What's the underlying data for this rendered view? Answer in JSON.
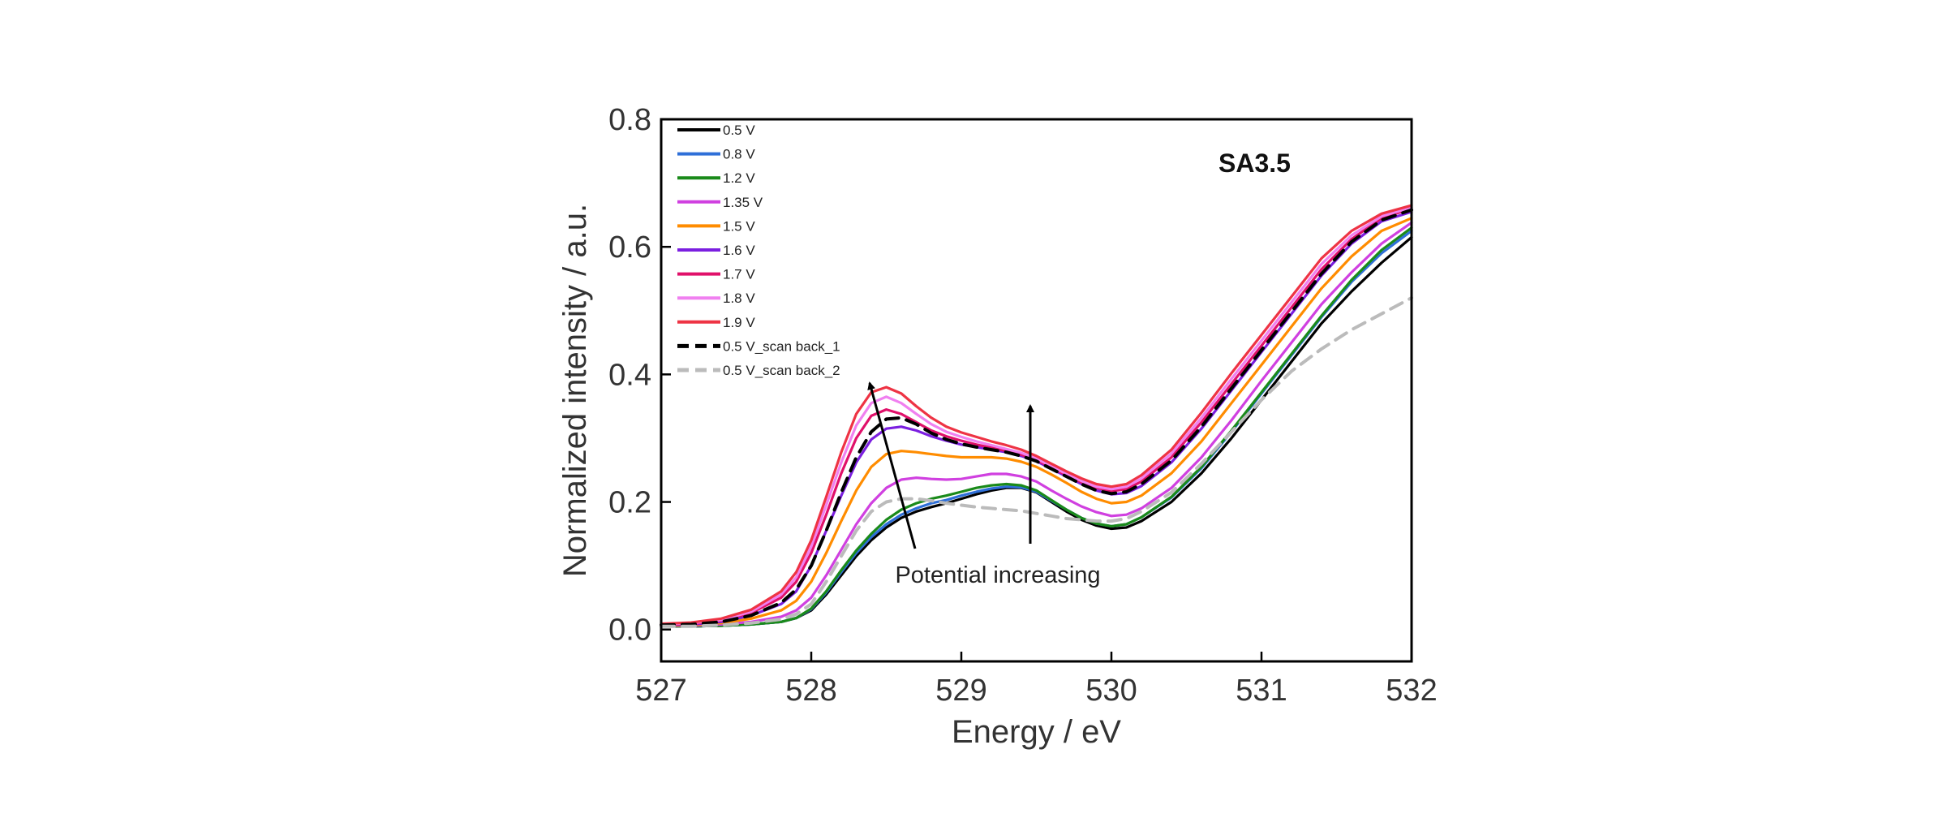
{
  "chart_data": {
    "type": "line",
    "title": "",
    "panel_label": "SA3.5",
    "xlabel": "Energy / eV",
    "ylabel": "Normalized intensity / a.u.",
    "xlim": [
      527,
      532
    ],
    "ylim": [
      -0.05,
      0.8
    ],
    "xticks": [
      527,
      528,
      529,
      530,
      531,
      532
    ],
    "xtick_labels": [
      "527",
      "528",
      "529",
      "530",
      "531",
      "532"
    ],
    "yticks": [
      0.0,
      0.2,
      0.4,
      0.6,
      0.8
    ],
    "ytick_labels": [
      "0.0",
      "0.2",
      "0.4",
      "0.6",
      "0.8"
    ],
    "grid": false,
    "legend_position": "top-left",
    "annotation": "Potential increasing",
    "x": [
      527.0,
      527.2,
      527.4,
      527.6,
      527.8,
      527.9,
      528.0,
      528.1,
      528.2,
      528.3,
      528.4,
      528.5,
      528.6,
      528.7,
      528.8,
      528.9,
      529.0,
      529.1,
      529.2,
      529.3,
      529.4,
      529.5,
      529.6,
      529.7,
      529.8,
      529.9,
      530.0,
      530.1,
      530.2,
      530.4,
      530.6,
      530.8,
      531.0,
      531.2,
      531.4,
      531.6,
      531.8,
      532.0
    ],
    "series": [
      {
        "name": "0.5 V",
        "color": "#000000",
        "dash": "solid",
        "values": [
          0.005,
          0.005,
          0.006,
          0.008,
          0.012,
          0.018,
          0.03,
          0.055,
          0.085,
          0.115,
          0.14,
          0.16,
          0.175,
          0.185,
          0.192,
          0.198,
          0.205,
          0.212,
          0.218,
          0.222,
          0.222,
          0.215,
          0.2,
          0.185,
          0.172,
          0.163,
          0.158,
          0.16,
          0.17,
          0.2,
          0.245,
          0.3,
          0.36,
          0.42,
          0.48,
          0.53,
          0.575,
          0.615
        ]
      },
      {
        "name": "0.8 V",
        "color": "#2e6fd8",
        "dash": "solid",
        "values": [
          0.005,
          0.005,
          0.006,
          0.008,
          0.012,
          0.018,
          0.032,
          0.058,
          0.09,
          0.12,
          0.145,
          0.165,
          0.18,
          0.19,
          0.198,
          0.203,
          0.21,
          0.216,
          0.221,
          0.224,
          0.223,
          0.216,
          0.202,
          0.188,
          0.175,
          0.166,
          0.162,
          0.165,
          0.176,
          0.207,
          0.253,
          0.31,
          0.37,
          0.43,
          0.49,
          0.545,
          0.59,
          0.625
        ]
      },
      {
        "name": "1.2 V",
        "color": "#1a8a1a",
        "dash": "solid",
        "values": [
          0.005,
          0.005,
          0.006,
          0.008,
          0.012,
          0.018,
          0.033,
          0.06,
          0.093,
          0.124,
          0.15,
          0.172,
          0.188,
          0.198,
          0.205,
          0.21,
          0.216,
          0.222,
          0.226,
          0.228,
          0.226,
          0.218,
          0.203,
          0.188,
          0.175,
          0.166,
          0.162,
          0.165,
          0.176,
          0.208,
          0.255,
          0.312,
          0.372,
          0.432,
          0.492,
          0.548,
          0.595,
          0.63
        ]
      },
      {
        "name": "1.35 V",
        "color": "#d040e0",
        "dash": "solid",
        "values": [
          0.006,
          0.006,
          0.008,
          0.012,
          0.02,
          0.03,
          0.05,
          0.085,
          0.125,
          0.165,
          0.198,
          0.222,
          0.235,
          0.238,
          0.236,
          0.235,
          0.236,
          0.24,
          0.244,
          0.244,
          0.24,
          0.232,
          0.218,
          0.205,
          0.193,
          0.184,
          0.178,
          0.18,
          0.19,
          0.222,
          0.27,
          0.328,
          0.39,
          0.45,
          0.51,
          0.56,
          0.605,
          0.638
        ]
      },
      {
        "name": "1.5 V",
        "color": "#ff8c00",
        "dash": "solid",
        "values": [
          0.006,
          0.007,
          0.01,
          0.017,
          0.03,
          0.045,
          0.075,
          0.12,
          0.17,
          0.218,
          0.255,
          0.275,
          0.28,
          0.278,
          0.275,
          0.272,
          0.27,
          0.27,
          0.27,
          0.268,
          0.263,
          0.255,
          0.243,
          0.23,
          0.216,
          0.205,
          0.198,
          0.2,
          0.21,
          0.245,
          0.295,
          0.355,
          0.415,
          0.475,
          0.535,
          0.585,
          0.625,
          0.645
        ]
      },
      {
        "name": "1.6 V",
        "color": "#7b1fe0",
        "dash": "solid",
        "values": [
          0.007,
          0.008,
          0.012,
          0.022,
          0.04,
          0.06,
          0.1,
          0.155,
          0.21,
          0.262,
          0.298,
          0.315,
          0.318,
          0.312,
          0.303,
          0.296,
          0.29,
          0.286,
          0.282,
          0.278,
          0.272,
          0.264,
          0.252,
          0.24,
          0.228,
          0.218,
          0.212,
          0.214,
          0.225,
          0.262,
          0.315,
          0.375,
          0.435,
          0.495,
          0.555,
          0.605,
          0.64,
          0.655
        ]
      },
      {
        "name": "1.7 V",
        "color": "#e0106a",
        "dash": "solid",
        "values": [
          0.008,
          0.009,
          0.014,
          0.026,
          0.05,
          0.075,
          0.12,
          0.18,
          0.245,
          0.3,
          0.335,
          0.345,
          0.338,
          0.325,
          0.312,
          0.303,
          0.296,
          0.29,
          0.285,
          0.28,
          0.274,
          0.266,
          0.254,
          0.242,
          0.231,
          0.222,
          0.217,
          0.22,
          0.232,
          0.27,
          0.325,
          0.385,
          0.445,
          0.505,
          0.565,
          0.612,
          0.645,
          0.66
        ]
      },
      {
        "name": "1.8 V",
        "color": "#f080f0",
        "dash": "solid",
        "values": [
          0.008,
          0.01,
          0.015,
          0.028,
          0.055,
          0.082,
          0.13,
          0.195,
          0.262,
          0.32,
          0.355,
          0.365,
          0.355,
          0.338,
          0.322,
          0.31,
          0.302,
          0.295,
          0.289,
          0.283,
          0.277,
          0.268,
          0.256,
          0.244,
          0.233,
          0.224,
          0.22,
          0.224,
          0.237,
          0.276,
          0.332,
          0.393,
          0.453,
          0.513,
          0.573,
          0.618,
          0.648,
          0.662
        ]
      },
      {
        "name": "1.9 V",
        "color": "#ee3344",
        "dash": "solid",
        "values": [
          0.009,
          0.011,
          0.017,
          0.031,
          0.06,
          0.09,
          0.14,
          0.208,
          0.278,
          0.338,
          0.372,
          0.38,
          0.37,
          0.35,
          0.332,
          0.318,
          0.309,
          0.302,
          0.295,
          0.289,
          0.282,
          0.272,
          0.26,
          0.248,
          0.237,
          0.228,
          0.224,
          0.228,
          0.242,
          0.282,
          0.34,
          0.402,
          0.462,
          0.522,
          0.582,
          0.625,
          0.652,
          0.665
        ]
      },
      {
        "name": "0.5 V_scan back_1",
        "color": "#000000",
        "dash": "dashed",
        "values": [
          0.007,
          0.008,
          0.012,
          0.022,
          0.042,
          0.063,
          0.1,
          0.155,
          0.215,
          0.27,
          0.31,
          0.33,
          0.332,
          0.322,
          0.308,
          0.298,
          0.291,
          0.286,
          0.282,
          0.278,
          0.272,
          0.264,
          0.252,
          0.24,
          0.228,
          0.218,
          0.213,
          0.216,
          0.228,
          0.265,
          0.318,
          0.378,
          0.438,
          0.498,
          0.558,
          0.608,
          0.642,
          0.658
        ]
      },
      {
        "name": "0.5 V_scan back_2",
        "color": "#bbbbbb",
        "dash": "dashed",
        "values": [
          0.005,
          0.005,
          0.007,
          0.01,
          0.016,
          0.024,
          0.04,
          0.075,
          0.115,
          0.155,
          0.185,
          0.2,
          0.205,
          0.205,
          0.202,
          0.198,
          0.195,
          0.192,
          0.19,
          0.188,
          0.186,
          0.182,
          0.178,
          0.174,
          0.172,
          0.17,
          0.17,
          0.174,
          0.185,
          0.215,
          0.26,
          0.31,
          0.36,
          0.405,
          0.44,
          0.47,
          0.495,
          0.52
        ]
      }
    ]
  }
}
